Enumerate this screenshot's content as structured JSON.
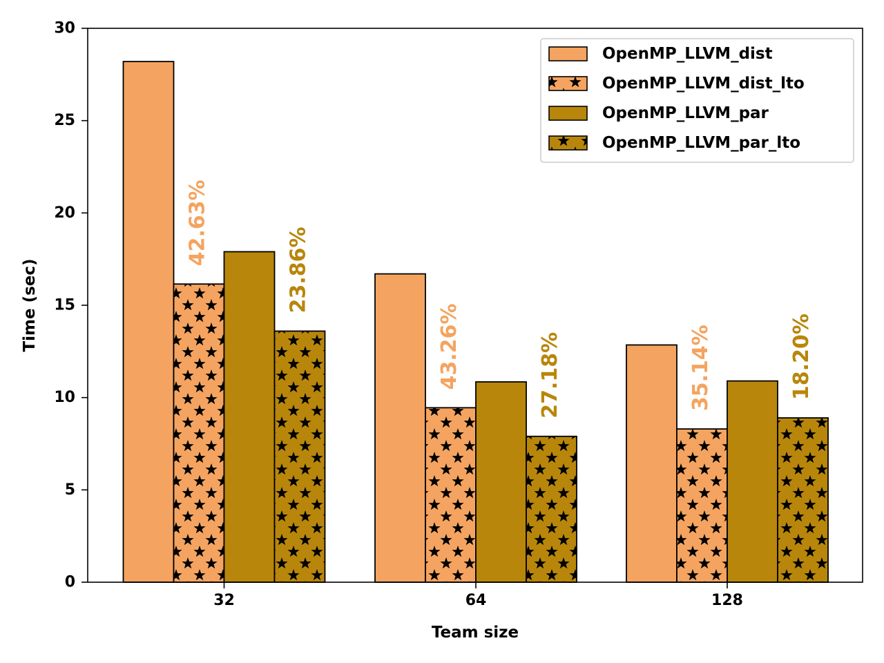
{
  "chart_data": {
    "type": "bar",
    "title": "",
    "xlabel": "Team size",
    "ylabel": "Time (sec)",
    "ylim": [
      0,
      30
    ],
    "yticks": [
      "0",
      "5",
      "10",
      "15",
      "20",
      "25",
      "30"
    ],
    "categories": [
      "32",
      "64",
      "128"
    ],
    "series": [
      {
        "name": "OpenMP_LLVM_dist",
        "values": [
          28.2,
          16.7,
          12.85
        ],
        "color": "#F4A460",
        "hatch": "none"
      },
      {
        "name": "OpenMP_LLVM_dist_lto",
        "values": [
          16.15,
          9.45,
          8.3
        ],
        "color": "#F4A460",
        "hatch": "stars"
      },
      {
        "name": "OpenMP_LLVM_par",
        "values": [
          17.9,
          10.85,
          10.9
        ],
        "color": "#B8860B",
        "hatch": "none"
      },
      {
        "name": "OpenMP_LLVM_par_lto",
        "values": [
          13.6,
          7.9,
          8.9
        ],
        "color": "#B8860B",
        "hatch": "stars"
      }
    ],
    "annotations": [
      {
        "text": "42.63%",
        "category": "32",
        "series": "OpenMP_LLVM_dist_lto",
        "color": "#F4A460"
      },
      {
        "text": "23.86%",
        "category": "32",
        "series": "OpenMP_LLVM_par_lto",
        "color": "#B8860B"
      },
      {
        "text": "43.26%",
        "category": "64",
        "series": "OpenMP_LLVM_dist_lto",
        "color": "#F4A460"
      },
      {
        "text": "27.18%",
        "category": "64",
        "series": "OpenMP_LLVM_par_lto",
        "color": "#B8860B"
      },
      {
        "text": "35.14%",
        "category": "128",
        "series": "OpenMP_LLVM_dist_lto",
        "color": "#F4A460"
      },
      {
        "text": "18.20%",
        "category": "128",
        "series": "OpenMP_LLVM_par_lto",
        "color": "#B8860B"
      }
    ],
    "legend_position": "top-right",
    "grid": false
  }
}
